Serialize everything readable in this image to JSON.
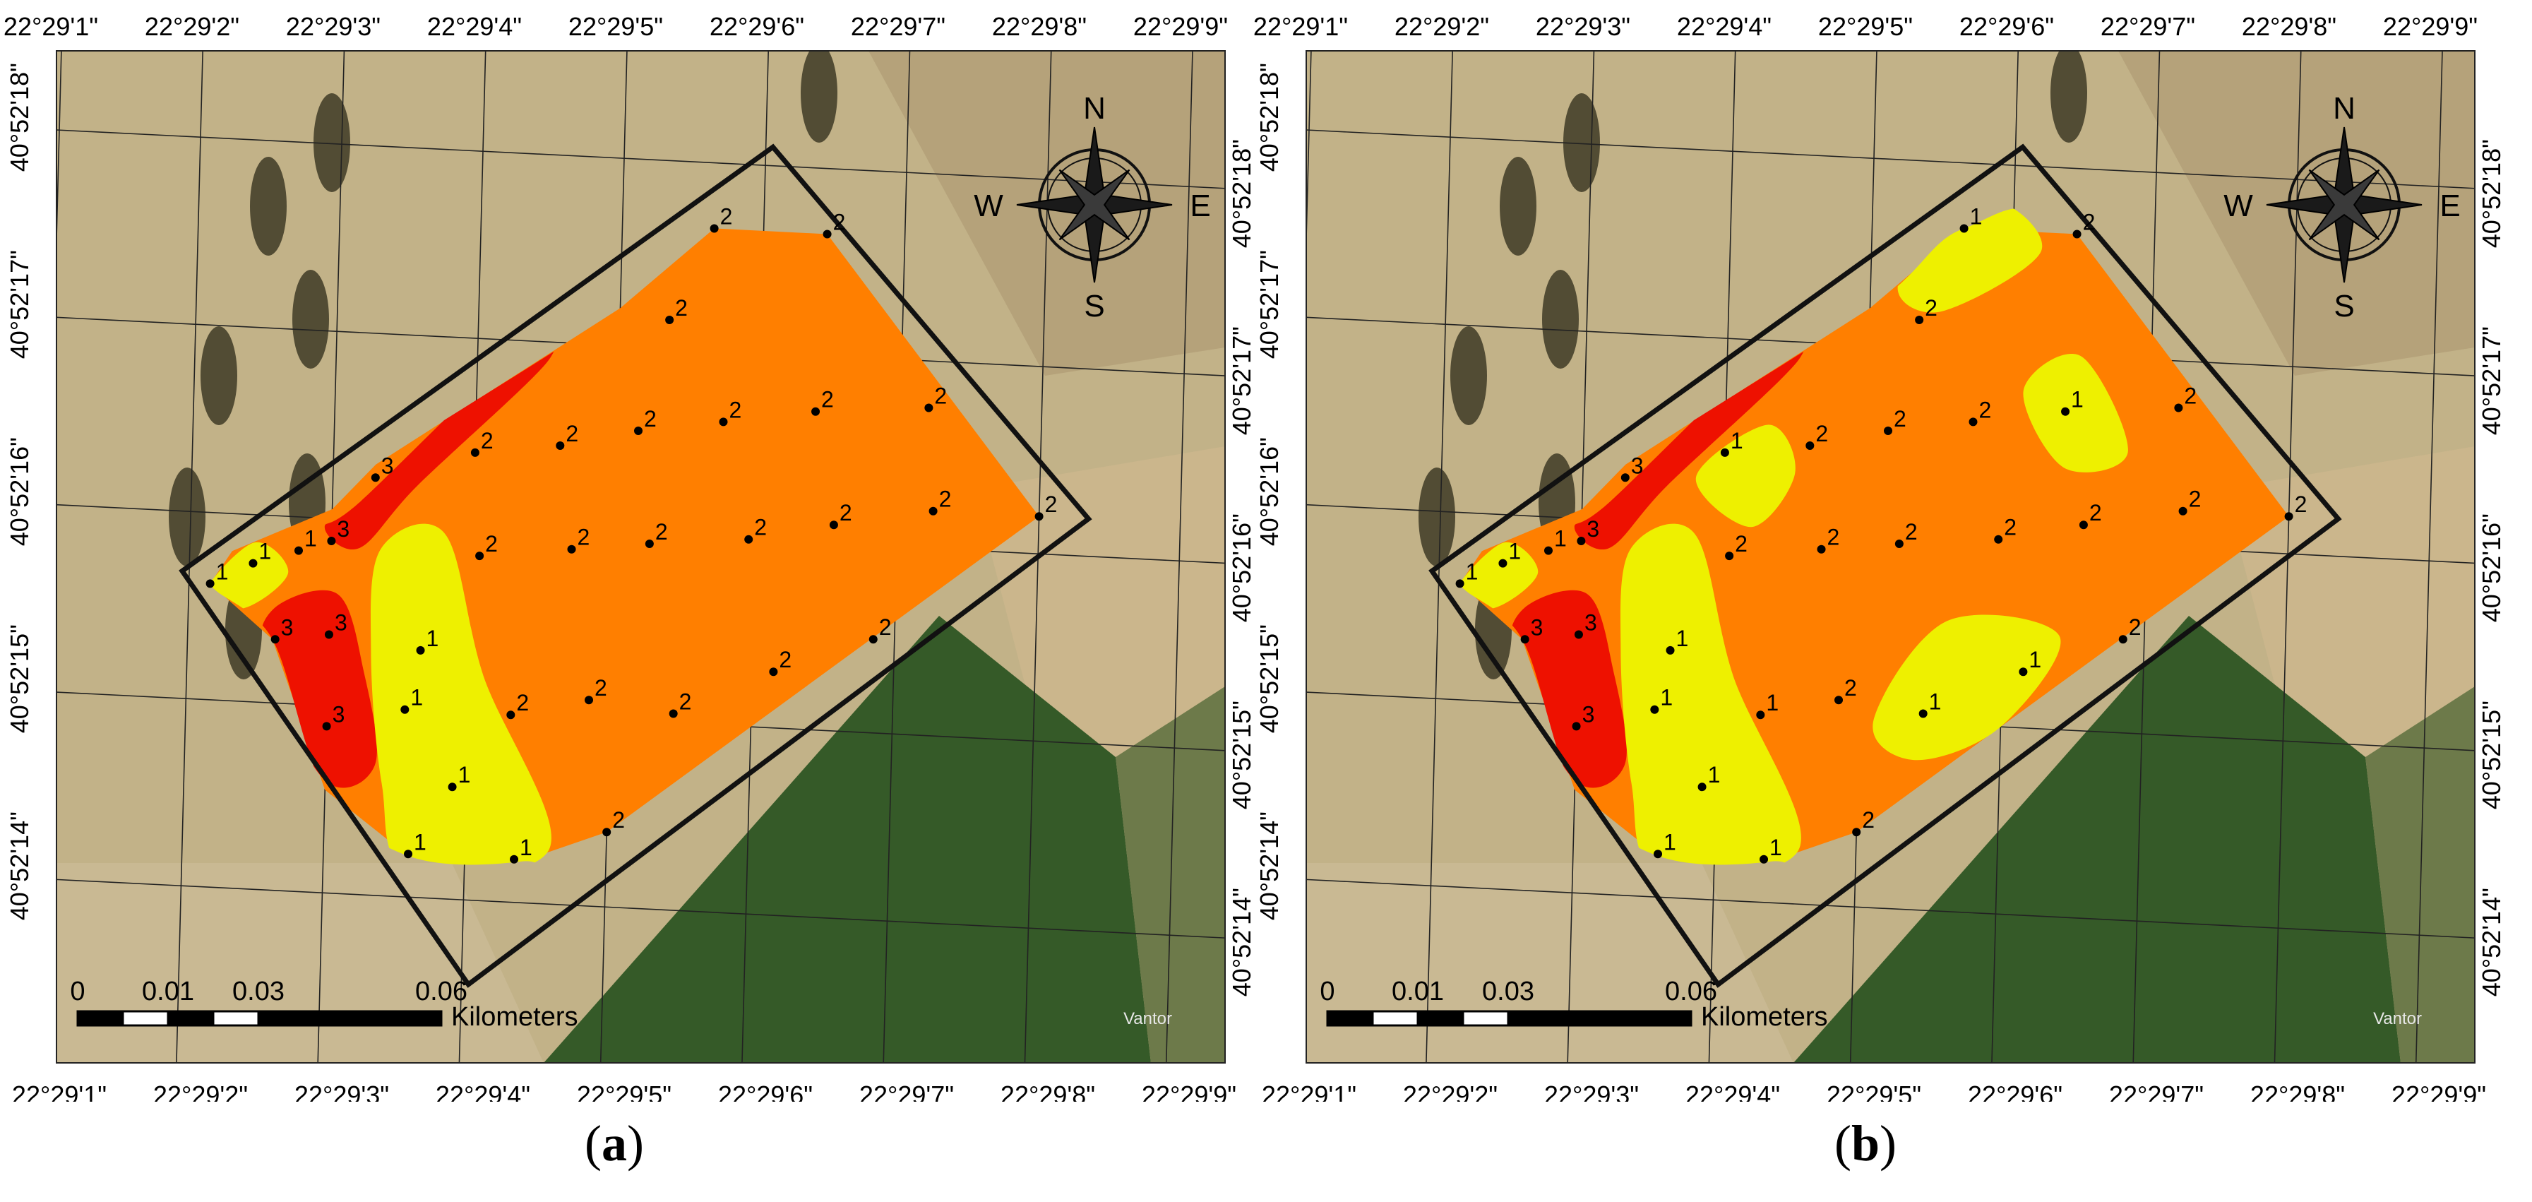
{
  "figure": {
    "coordinates": {
      "longitude_labels": [
        "22°29'1\"",
        "22°29'2\"",
        "22°29'3\"",
        "22°29'4\"",
        "22°29'5\"",
        "22°29'6\"",
        "22°29'7\"",
        "22°29'8\"",
        "22°29'9\""
      ],
      "latitude_labels": [
        "40°52'18\"",
        "40°52'17\"",
        "40°52'16\"",
        "40°52'15\"",
        "40°52'14\""
      ]
    },
    "compass": {
      "north": "N",
      "south": "S",
      "east": "E",
      "west": "W"
    },
    "scale_bar": {
      "ticks": [
        "0",
        "0.01",
        "0.03",
        "0.06"
      ],
      "units": "Kilometers"
    },
    "imagery_credit": "Vantor",
    "colors": {
      "class_1": "#eef000",
      "class_2": "#ff7f00",
      "class_3": "#ee1100",
      "boundary": "#111111",
      "field_light": "#c2b288",
      "crop_green": "#355a28"
    },
    "panels": [
      {
        "id": "a",
        "caption_open": "(",
        "caption_letter": "a",
        "caption_close": ")",
        "sample_points": [
          {
            "label": "1",
            "lon": 2.15,
            "lat": 15.62,
            "cls": 1
          },
          {
            "label": "1",
            "lon": 2.45,
            "lat": 15.74,
            "cls": 1
          },
          {
            "label": "1",
            "lon": 2.77,
            "lat": 15.82,
            "cls": 1
          },
          {
            "label": "3",
            "lon": 2.62,
            "lat": 15.34,
            "cls": 3
          },
          {
            "label": "3",
            "lon": 3.0,
            "lat": 15.38,
            "cls": 3
          },
          {
            "label": "3",
            "lon": 3.0,
            "lat": 15.88,
            "cls": 3
          },
          {
            "label": "3",
            "lon": 3.0,
            "lat": 14.89,
            "cls": 3
          },
          {
            "label": "3",
            "lon": 3.3,
            "lat": 16.23,
            "cls": 3
          },
          {
            "label": "1",
            "lon": 3.65,
            "lat": 15.32,
            "cls": 1
          },
          {
            "label": "1",
            "lon": 3.55,
            "lat": 15.0,
            "cls": 1
          },
          {
            "label": "1",
            "lon": 3.9,
            "lat": 14.6,
            "cls": 1
          },
          {
            "label": "1",
            "lon": 3.6,
            "lat": 14.23,
            "cls": 1
          },
          {
            "label": "1",
            "lon": 4.35,
            "lat": 14.23,
            "cls": 1
          },
          {
            "label": "2",
            "lon": 4.0,
            "lat": 16.39,
            "cls": 2
          },
          {
            "label": "2",
            "lon": 4.05,
            "lat": 15.84,
            "cls": 2
          },
          {
            "label": "2",
            "lon": 4.3,
            "lat": 15.0,
            "cls": 2
          },
          {
            "label": "2",
            "lon": 4.6,
            "lat": 16.45,
            "cls": 2
          },
          {
            "label": "2",
            "lon": 4.7,
            "lat": 15.9,
            "cls": 2
          },
          {
            "label": "2",
            "lon": 4.85,
            "lat": 15.1,
            "cls": 2
          },
          {
            "label": "2",
            "lon": 5.15,
            "lat": 16.55,
            "cls": 2
          },
          {
            "label": "2",
            "lon": 5.25,
            "lat": 15.95,
            "cls": 2
          },
          {
            "label": "2",
            "lon": 5.45,
            "lat": 15.05,
            "cls": 2
          },
          {
            "label": "2",
            "lon": 5.75,
            "lat": 16.62,
            "cls": 2
          },
          {
            "label": "2",
            "lon": 5.95,
            "lat": 16.0,
            "cls": 2
          },
          {
            "label": "2",
            "lon": 6.15,
            "lat": 15.3,
            "cls": 2
          },
          {
            "label": "2",
            "lon": 6.4,
            "lat": 16.7,
            "cls": 2
          },
          {
            "label": "2",
            "lon": 6.55,
            "lat": 16.1,
            "cls": 2
          },
          {
            "label": "2",
            "lon": 6.85,
            "lat": 15.5,
            "cls": 2
          },
          {
            "label": "2",
            "lon": 7.2,
            "lat": 16.75,
            "cls": 2
          },
          {
            "label": "2",
            "lon": 7.25,
            "lat": 16.2,
            "cls": 2
          },
          {
            "label": "2",
            "lon": 8.0,
            "lat": 16.2,
            "cls": 2
          },
          {
            "label": "2",
            "lon": 5.0,
            "lat": 14.4,
            "cls": 2
          },
          {
            "label": "2",
            "lon": 5.35,
            "lat": 17.15,
            "cls": 2
          },
          {
            "label": "2",
            "lon": 5.65,
            "lat": 17.65,
            "cls": 2
          },
          {
            "label": "2",
            "lon": 6.45,
            "lat": 17.65,
            "cls": 2
          }
        ]
      },
      {
        "id": "b",
        "caption_open": "(",
        "caption_letter": "b",
        "caption_close": ")",
        "sample_points": [
          {
            "label": "1",
            "lon": 2.15,
            "lat": 15.62,
            "cls": 1
          },
          {
            "label": "1",
            "lon": 2.45,
            "lat": 15.74,
            "cls": 1
          },
          {
            "label": "1",
            "lon": 2.77,
            "lat": 15.82,
            "cls": 1
          },
          {
            "label": "3",
            "lon": 2.62,
            "lat": 15.34,
            "cls": 3
          },
          {
            "label": "3",
            "lon": 3.0,
            "lat": 15.38,
            "cls": 3
          },
          {
            "label": "3",
            "lon": 3.0,
            "lat": 15.88,
            "cls": 3
          },
          {
            "label": "3",
            "lon": 3.0,
            "lat": 14.89,
            "cls": 3
          },
          {
            "label": "3",
            "lon": 3.3,
            "lat": 16.23,
            "cls": 3
          },
          {
            "label": "1",
            "lon": 3.65,
            "lat": 15.32,
            "cls": 1
          },
          {
            "label": "1",
            "lon": 3.55,
            "lat": 15.0,
            "cls": 1
          },
          {
            "label": "1",
            "lon": 3.9,
            "lat": 14.6,
            "cls": 1
          },
          {
            "label": "1",
            "lon": 3.6,
            "lat": 14.23,
            "cls": 1
          },
          {
            "label": "1",
            "lon": 4.35,
            "lat": 14.23,
            "cls": 1
          },
          {
            "label": "1",
            "lon": 4.0,
            "lat": 16.39,
            "cls": 1
          },
          {
            "label": "2",
            "lon": 4.05,
            "lat": 15.84,
            "cls": 2
          },
          {
            "label": "1",
            "lon": 4.3,
            "lat": 15.0,
            "cls": 1
          },
          {
            "label": "2",
            "lon": 4.6,
            "lat": 16.45,
            "cls": 2
          },
          {
            "label": "2",
            "lon": 4.7,
            "lat": 15.9,
            "cls": 2
          },
          {
            "label": "2",
            "lon": 4.85,
            "lat": 15.1,
            "cls": 2
          },
          {
            "label": "2",
            "lon": 5.15,
            "lat": 16.55,
            "cls": 2
          },
          {
            "label": "2",
            "lon": 5.25,
            "lat": 15.95,
            "cls": 2
          },
          {
            "label": "1",
            "lon": 5.45,
            "lat": 15.05,
            "cls": 1
          },
          {
            "label": "2",
            "lon": 5.75,
            "lat": 16.62,
            "cls": 2
          },
          {
            "label": "2",
            "lon": 5.95,
            "lat": 16.0,
            "cls": 2
          },
          {
            "label": "1",
            "lon": 6.15,
            "lat": 15.3,
            "cls": 1
          },
          {
            "label": "1",
            "lon": 6.4,
            "lat": 16.7,
            "cls": 1
          },
          {
            "label": "2",
            "lon": 6.55,
            "lat": 16.1,
            "cls": 2
          },
          {
            "label": "2",
            "lon": 6.85,
            "lat": 15.5,
            "cls": 2
          },
          {
            "label": "2",
            "lon": 7.2,
            "lat": 16.75,
            "cls": 2
          },
          {
            "label": "2",
            "lon": 7.25,
            "lat": 16.2,
            "cls": 2
          },
          {
            "label": "2",
            "lon": 8.0,
            "lat": 16.2,
            "cls": 2
          },
          {
            "label": "2",
            "lon": 5.0,
            "lat": 14.4,
            "cls": 2
          },
          {
            "label": "2",
            "lon": 5.35,
            "lat": 17.15,
            "cls": 2
          },
          {
            "label": "1",
            "lon": 5.65,
            "lat": 17.65,
            "cls": 1
          },
          {
            "label": "2",
            "lon": 6.45,
            "lat": 17.65,
            "cls": 2
          }
        ]
      }
    ]
  }
}
